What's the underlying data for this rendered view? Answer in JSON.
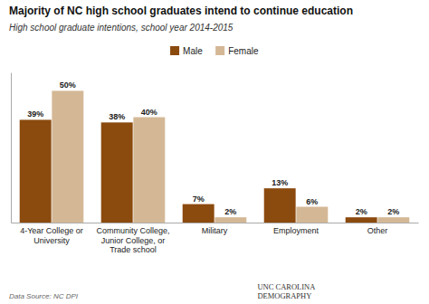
{
  "chart_data": {
    "type": "bar",
    "title": "Majority of NC high school graduates intend to continue education",
    "subtitle": "High school graduate intentions, school year 2014-2015",
    "categories": [
      "4-Year College or\nUniversity",
      "Community College,\nJunior College, or\nTrade school",
      "Military",
      "Employment",
      "Other"
    ],
    "series": [
      {
        "name": "Male",
        "color": "#8B4A0E",
        "values": [
          39,
          38,
          7,
          13,
          2
        ],
        "value_labels": [
          "39%",
          "38%",
          "7%",
          "13%",
          "2%"
        ]
      },
      {
        "name": "Female",
        "color": "#D4B896",
        "values": [
          50,
          40,
          2,
          6,
          2
        ],
        "value_labels": [
          "50%",
          "40%",
          "2%",
          "6%",
          "2%"
        ]
      }
    ],
    "ylim": [
      0,
      57
    ],
    "grid": false,
    "legend": "top",
    "data_labels": true,
    "tick_labels": "x",
    "annotations": [
      "Data Source: NC DPI",
      "UNC CAROLINA\nDEMOGRAPHY"
    ]
  }
}
